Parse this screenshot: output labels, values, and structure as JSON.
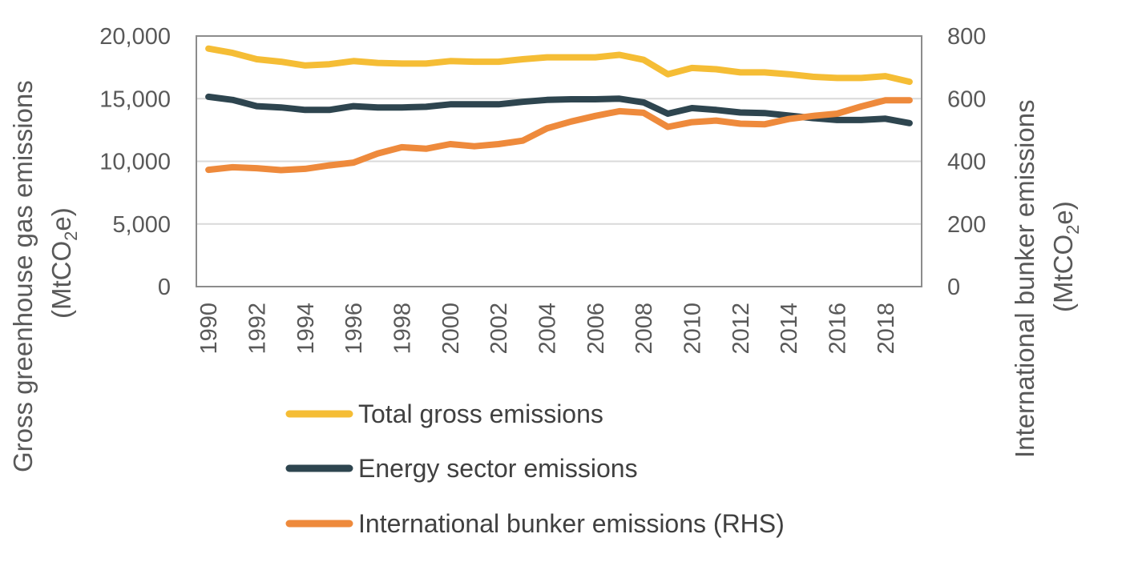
{
  "chart_data": {
    "type": "line",
    "title": "",
    "x": [
      1990,
      1991,
      1992,
      1993,
      1994,
      1995,
      1996,
      1997,
      1998,
      1999,
      2000,
      2001,
      2002,
      2003,
      2004,
      2005,
      2006,
      2007,
      2008,
      2009,
      2010,
      2011,
      2012,
      2013,
      2014,
      2015,
      2016,
      2017,
      2018,
      2019
    ],
    "x_tick_labels": [
      "1990",
      "1992",
      "1994",
      "1996",
      "1998",
      "2000",
      "2002",
      "2004",
      "2006",
      "2008",
      "2010",
      "2012",
      "2014",
      "2016",
      "2018"
    ],
    "left_axis": {
      "label_main": "Gross greenhouse gas emissions",
      "label_unit_prefix": "(MtCO",
      "label_unit_sub": "2",
      "label_unit_suffix": "e)",
      "ylim": [
        0,
        20000
      ],
      "ticks": [
        0,
        5000,
        10000,
        15000,
        20000
      ],
      "tick_labels": [
        "0",
        "5,000",
        "10,000",
        "15,000",
        "20,000"
      ]
    },
    "right_axis": {
      "label_main": "International bunker emissions",
      "label_unit_prefix": "(MtCO",
      "label_unit_sub": "2",
      "label_unit_suffix": "e)",
      "ylim": [
        0,
        800
      ],
      "ticks": [
        0,
        200,
        400,
        600,
        800
      ],
      "tick_labels": [
        "0",
        "200",
        "400",
        "600",
        "800"
      ]
    },
    "series": [
      {
        "name": "Total gross emissions",
        "axis": "left",
        "color": "#f5bd35",
        "values": [
          19000,
          18650,
          18150,
          17950,
          17650,
          17750,
          18000,
          17850,
          17800,
          17800,
          18000,
          17950,
          17950,
          18150,
          18300,
          18300,
          18300,
          18500,
          18100,
          16950,
          17450,
          17350,
          17100,
          17100,
          16950,
          16750,
          16650,
          16650,
          16800,
          16350
        ]
      },
      {
        "name": "Energy sector emissions",
        "axis": "left",
        "color": "#2e454f",
        "values": [
          15150,
          14900,
          14400,
          14300,
          14100,
          14100,
          14400,
          14300,
          14300,
          14350,
          14550,
          14550,
          14550,
          14750,
          14900,
          14950,
          14950,
          15000,
          14700,
          13800,
          14250,
          14100,
          13900,
          13850,
          13650,
          13450,
          13300,
          13300,
          13400,
          13050
        ]
      },
      {
        "name": "International bunker emissions (RHS)",
        "axis": "right",
        "color": "#ee8a3c",
        "values": [
          373,
          381,
          378,
          372,
          376,
          387,
          396,
          425,
          445,
          440,
          455,
          448,
          455,
          466,
          505,
          527,
          545,
          560,
          555,
          510,
          525,
          530,
          520,
          518,
          535,
          545,
          552,
          575,
          595,
          595
        ]
      }
    ],
    "grid": true,
    "legend_position": "bottom"
  }
}
